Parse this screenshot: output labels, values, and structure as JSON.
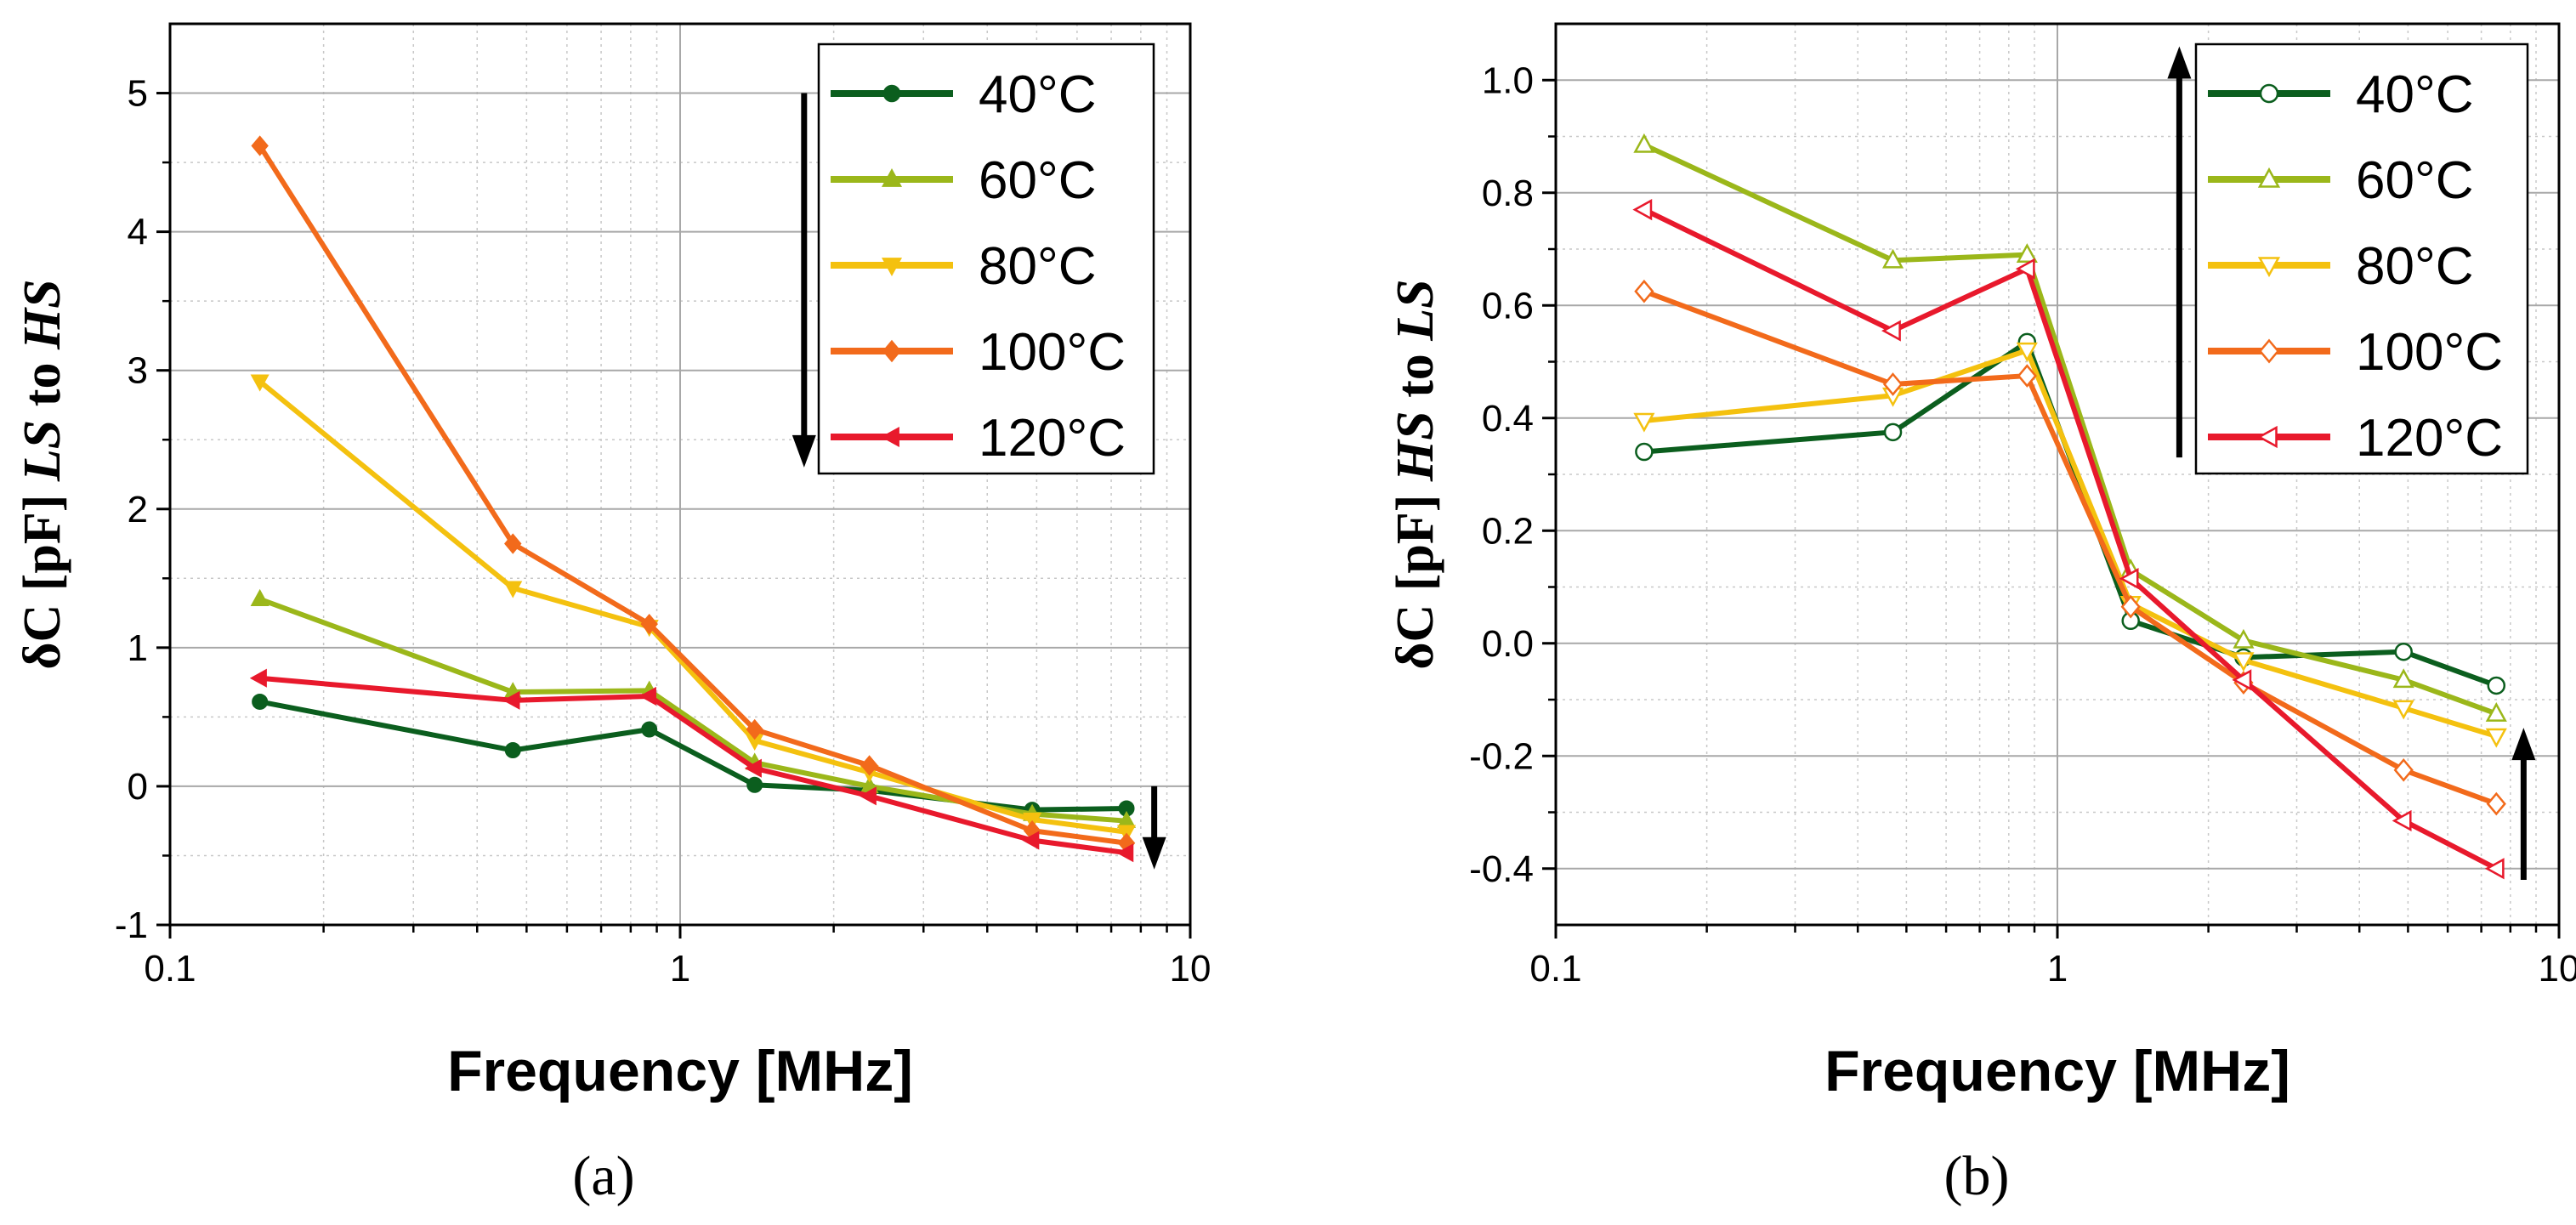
{
  "chart_data": [
    {
      "panel": "(a)",
      "type": "line",
      "xscale": "log",
      "xlabel": "Frequency [MHz]",
      "ylabel_parts": [
        {
          "text": "δC [pF] ",
          "italic": false
        },
        {
          "text": "LS",
          "italic": true
        },
        {
          "text": " to ",
          "italic": false
        },
        {
          "text": "HS",
          "italic": true
        }
      ],
      "xlim": [
        0.1,
        10
      ],
      "ylim": [
        -1,
        5.5
      ],
      "xticks": [
        0.1,
        1,
        10
      ],
      "xtick_labels": [
        "0.1",
        "1",
        "10"
      ],
      "yticks": [
        -1,
        0,
        1,
        2,
        3,
        4,
        5
      ],
      "ytick_labels": [
        "-1",
        "0",
        "1",
        "2",
        "3",
        "4",
        "5"
      ],
      "marker_fill": "filled",
      "legend_position": "top-right",
      "x": [
        0.15,
        0.47,
        0.87,
        1.4,
        2.35,
        4.9,
        7.5
      ],
      "series": [
        {
          "name": "40°C",
          "color": "#0b5e1e",
          "marker": "circle",
          "values": [
            0.61,
            0.26,
            0.41,
            0.01,
            -0.03,
            -0.17,
            -0.16
          ]
        },
        {
          "name": "60°C",
          "color": "#9bb71a",
          "marker": "triangle-up",
          "values": [
            1.35,
            0.68,
            0.69,
            0.17,
            0.0,
            -0.2,
            -0.25
          ]
        },
        {
          "name": "80°C",
          "color": "#f4c10f",
          "marker": "triangle-down",
          "values": [
            2.92,
            1.43,
            1.15,
            0.33,
            0.1,
            -0.24,
            -0.33
          ]
        },
        {
          "name": "100°C",
          "color": "#f26a1b",
          "marker": "diamond",
          "values": [
            4.62,
            1.75,
            1.17,
            0.41,
            0.15,
            -0.32,
            -0.41
          ]
        },
        {
          "name": "120°C",
          "color": "#e8192c",
          "marker": "triangle-left",
          "values": [
            0.78,
            0.62,
            0.65,
            0.13,
            -0.07,
            -0.39,
            -0.48
          ]
        }
      ],
      "arrows": [
        {
          "direction": "down",
          "x": 1.75,
          "y_from": 5.0,
          "y_to": 2.3
        },
        {
          "direction": "down",
          "x": 8.5,
          "y_from": 0.0,
          "y_to": -0.6
        }
      ]
    },
    {
      "panel": "(b)",
      "type": "line",
      "xscale": "log",
      "xlabel": "Frequency [MHz]",
      "ylabel_parts": [
        {
          "text": "δC [pF] ",
          "italic": false
        },
        {
          "text": "HS",
          "italic": true
        },
        {
          "text": " to ",
          "italic": false
        },
        {
          "text": "LS",
          "italic": true
        }
      ],
      "xlim": [
        0.1,
        10
      ],
      "ylim": [
        -0.5,
        1.1
      ],
      "xticks": [
        0.1,
        1,
        10
      ],
      "xtick_labels": [
        "0.1",
        "1",
        "10"
      ],
      "yticks": [
        -0.4,
        -0.2,
        0.0,
        0.2,
        0.4,
        0.6,
        0.8,
        1.0
      ],
      "ytick_labels": [
        "-0.4",
        "-0.2",
        "0.0",
        "0.2",
        "0.4",
        "0.6",
        "0.8",
        "1.0"
      ],
      "marker_fill": "open",
      "legend_position": "top-right",
      "x": [
        0.15,
        0.47,
        0.87,
        1.4,
        2.35,
        4.9,
        7.5
      ],
      "series": [
        {
          "name": "40°C",
          "color": "#0b5e1e",
          "marker": "circle",
          "values": [
            0.34,
            0.375,
            0.535,
            0.04,
            -0.025,
            -0.015,
            -0.075
          ]
        },
        {
          "name": "60°C",
          "color": "#9bb71a",
          "marker": "triangle-up",
          "values": [
            0.885,
            0.68,
            0.69,
            0.13,
            0.005,
            -0.065,
            -0.125
          ]
        },
        {
          "name": "80°C",
          "color": "#f4c10f",
          "marker": "triangle-down",
          "values": [
            0.395,
            0.44,
            0.52,
            0.07,
            -0.03,
            -0.115,
            -0.165
          ]
        },
        {
          "name": "100°C",
          "color": "#f26a1b",
          "marker": "diamond",
          "values": [
            0.625,
            0.46,
            0.475,
            0.065,
            -0.07,
            -0.225,
            -0.285
          ]
        },
        {
          "name": "120°C",
          "color": "#e8192c",
          "marker": "triangle-left",
          "values": [
            0.77,
            0.555,
            0.665,
            0.115,
            -0.065,
            -0.315,
            -0.4
          ]
        }
      ],
      "arrows": [
        {
          "direction": "up",
          "x": 1.75,
          "y_from": 0.33,
          "y_to": 1.06
        },
        {
          "direction": "up",
          "x": 8.5,
          "y_from": -0.42,
          "y_to": -0.15
        }
      ]
    }
  ]
}
